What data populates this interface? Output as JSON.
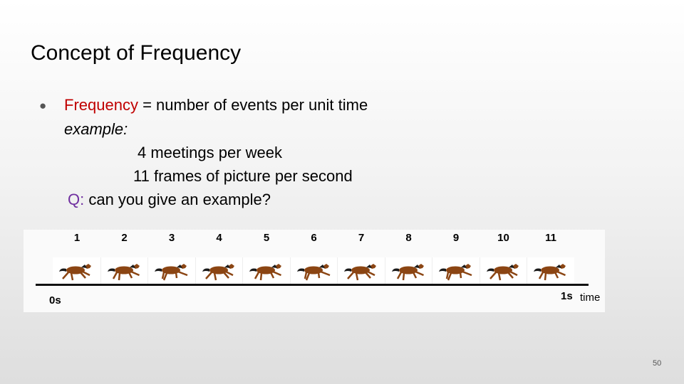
{
  "slide": {
    "title": "Concept of Frequency",
    "bullet": {
      "term": "Frequency",
      "definition": " = number of events per unit time",
      "example_label": "example:",
      "examples": [
        "4 meetings per week",
        "11 frames of picture per second"
      ],
      "question_prefix": "Q:",
      "question_text": " can you give an example?"
    },
    "page_number": "50"
  },
  "figure": {
    "frame_numbers": [
      "1",
      "2",
      "3",
      "4",
      "5",
      "6",
      "7",
      "8",
      "9",
      "10",
      "11"
    ],
    "start_label": "0s",
    "end_label": "1s",
    "axis_label": "time"
  },
  "colors": {
    "term": "#c00000",
    "question": "#7030a0",
    "horse_body": "#8b4513",
    "horse_mane": "#1a1a1a"
  },
  "icons": {
    "bullet": "filled-circle",
    "frame_image": "galloping-horse"
  }
}
